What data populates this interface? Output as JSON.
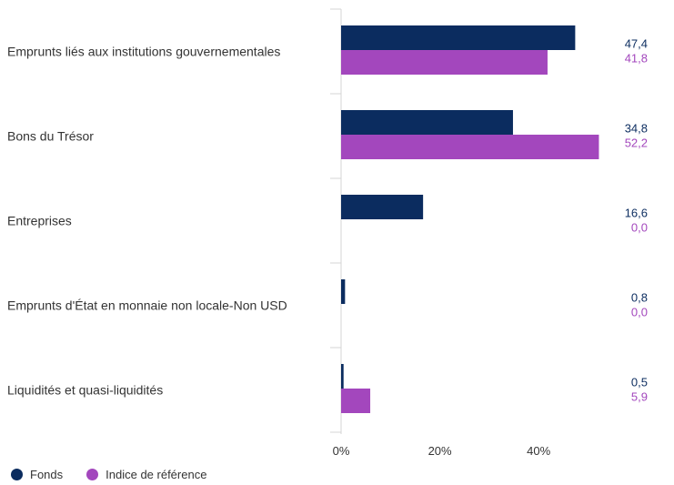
{
  "chart_data": {
    "type": "bar",
    "orientation": "horizontal",
    "categories": [
      "Emprunts liés aux institutions gouvernementales",
      "Bons du Trésor",
      "Entreprises",
      "Emprunts d'État en monnaie non locale-Non USD",
      "Liquidités et quasi-liquidités"
    ],
    "series": [
      {
        "name": "Fonds",
        "color": "#0b2c5f",
        "values": [
          47.4,
          34.8,
          16.6,
          0.8,
          0.5
        ],
        "labels": [
          "47,4",
          "34,8",
          "16,6",
          "0,8",
          "0,5"
        ]
      },
      {
        "name": "Indice de référence",
        "color": "#a347bd",
        "values": [
          41.8,
          52.2,
          0.0,
          0.0,
          5.9
        ],
        "labels": [
          "41,8",
          "52,2",
          "0,0",
          "0,0",
          "5,9"
        ]
      }
    ],
    "xlim": [
      0,
      60
    ],
    "xticks": [
      "0%",
      "20%",
      "40%"
    ],
    "xtick_values": [
      0,
      20,
      40
    ],
    "grid": false,
    "legend_position": "bottom-left"
  }
}
